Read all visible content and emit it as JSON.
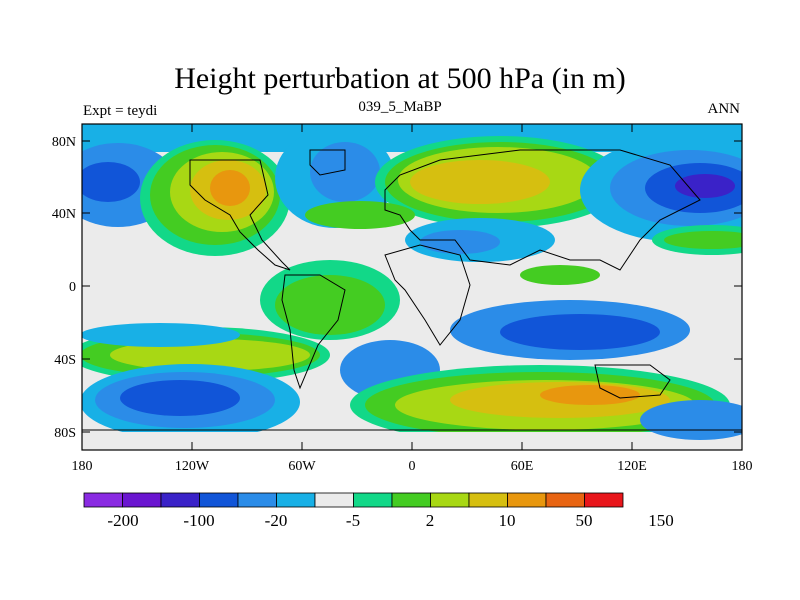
{
  "title": "Height perturbation at 500 hPa (in m)",
  "subtitle_left": "Expt = teydi",
  "subtitle_center": "039_5_MaBP",
  "subtitle_right": "ANN",
  "lat_ticks": [
    "80N",
    "40N",
    "0",
    "40S",
    "80S"
  ],
  "lon_ticks": [
    "180",
    "120W",
    "60W",
    "0",
    "60E",
    "120E",
    "180"
  ],
  "colorbar": {
    "colors": [
      "#8a2be2",
      "#6a15d0",
      "#3a22c8",
      "#1155d8",
      "#2b8ce8",
      "#18b0e6",
      "#ebebeb",
      "#12d888",
      "#44cc22",
      "#a8d814",
      "#d6bf10",
      "#e8970e",
      "#e86412",
      "#e8161b"
    ],
    "labels": [
      "-200",
      "-100",
      "-20",
      "-5",
      "2",
      "10",
      "50",
      "150"
    ]
  }
}
